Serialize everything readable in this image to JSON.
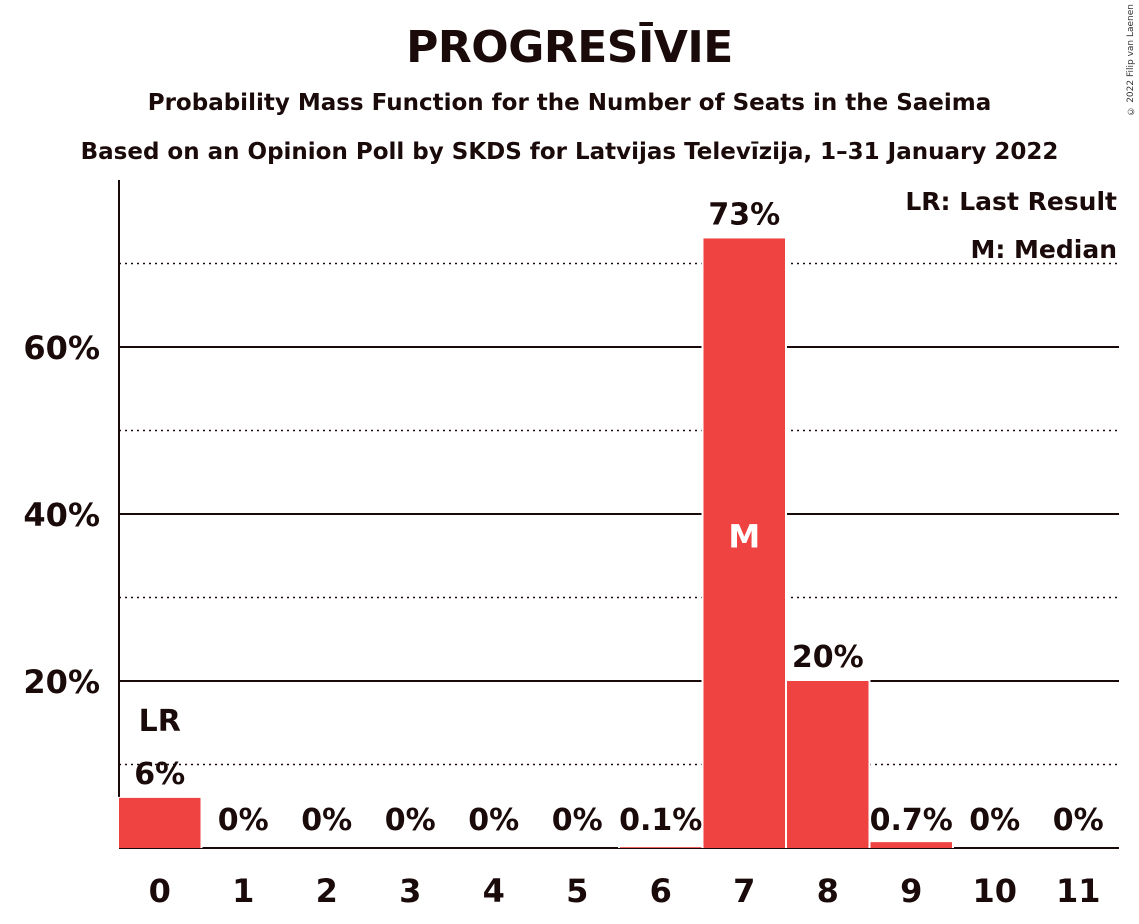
{
  "header": {
    "title": "PROGRESĪVIE",
    "subtitle1": "Probability Mass Function for the Number of Seats in the Saeima",
    "subtitle2": "Based on an Opinion Poll by SKDS for Latvijas Televīzija, 1–31 January 2022",
    "copyright": "© 2022 Filip van Laenen"
  },
  "legend": {
    "last_result": "LR: Last Result",
    "median": "M: Median"
  },
  "colors": {
    "bar": "#ee4340",
    "text": "#1a0a0a"
  },
  "chart_data": {
    "type": "bar",
    "categories": [
      "0",
      "1",
      "2",
      "3",
      "4",
      "5",
      "6",
      "7",
      "8",
      "9",
      "10",
      "11"
    ],
    "values": [
      6,
      0,
      0,
      0,
      0,
      0,
      0.1,
      73,
      20,
      0.7,
      0,
      0
    ],
    "value_labels": [
      "6%",
      "0%",
      "0%",
      "0%",
      "0%",
      "0%",
      "0.1%",
      "73%",
      "20%",
      "0.7%",
      "0%",
      "0%"
    ],
    "ylim": [
      0,
      80
    ],
    "yticks": [
      20,
      40,
      60
    ],
    "ytick_labels": [
      "20%",
      "40%",
      "60%"
    ],
    "minor_gridlines": [
      10,
      30,
      50,
      70
    ],
    "last_result": "0",
    "last_result_label": "LR",
    "median": "7",
    "median_label": "M",
    "legend_position": "top-right"
  }
}
